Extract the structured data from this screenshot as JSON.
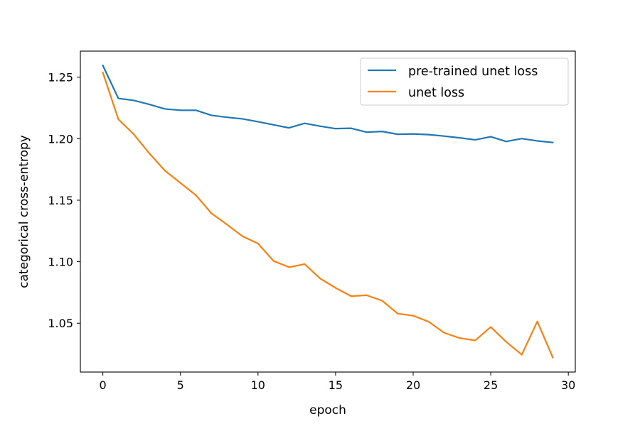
{
  "chart_data": {
    "type": "line",
    "title": "",
    "xlabel": "epoch",
    "ylabel": "categorical cross-entropy",
    "xlim": [
      -1.45,
      30.45
    ],
    "ylim": [
      1.0103,
      1.2712
    ],
    "xticks": [
      0,
      5,
      10,
      15,
      20,
      25,
      30
    ],
    "yticks": [
      1.05,
      1.1,
      1.15,
      1.2,
      1.25
    ],
    "ytick_labels": [
      "1.05",
      "1.10",
      "1.15",
      "1.20",
      "1.25"
    ],
    "grid": false,
    "legend_position": "top-right",
    "x": [
      0,
      1,
      2,
      3,
      4,
      5,
      6,
      7,
      8,
      9,
      10,
      11,
      12,
      13,
      14,
      15,
      16,
      17,
      18,
      19,
      20,
      21,
      22,
      23,
      24,
      25,
      26,
      27,
      28,
      29
    ],
    "series": [
      {
        "name": "pre-trained unet loss",
        "color": "#1f77b4",
        "values": [
          1.2595,
          1.2328,
          1.2311,
          1.2279,
          1.2242,
          1.2231,
          1.2231,
          1.219,
          1.2174,
          1.2161,
          1.2138,
          1.2113,
          1.2088,
          1.2125,
          1.2102,
          1.2082,
          1.2085,
          1.2053,
          1.2059,
          1.2036,
          1.2039,
          1.2033,
          1.2021,
          1.2007,
          1.1991,
          1.2016,
          1.1977,
          1.2001,
          1.1982,
          1.1969
        ]
      },
      {
        "name": "unet loss",
        "color": "#ff7f0e",
        "values": [
          1.2537,
          1.2158,
          1.2035,
          1.188,
          1.174,
          1.164,
          1.154,
          1.1393,
          1.1302,
          1.1207,
          1.1148,
          1.1006,
          1.0955,
          1.0981,
          1.0864,
          1.0787,
          1.072,
          1.0727,
          1.0683,
          1.0578,
          1.0561,
          1.0512,
          1.0422,
          1.0379,
          1.036,
          1.0469,
          1.0348,
          1.0244,
          1.0514,
          1.0221
        ]
      }
    ]
  }
}
